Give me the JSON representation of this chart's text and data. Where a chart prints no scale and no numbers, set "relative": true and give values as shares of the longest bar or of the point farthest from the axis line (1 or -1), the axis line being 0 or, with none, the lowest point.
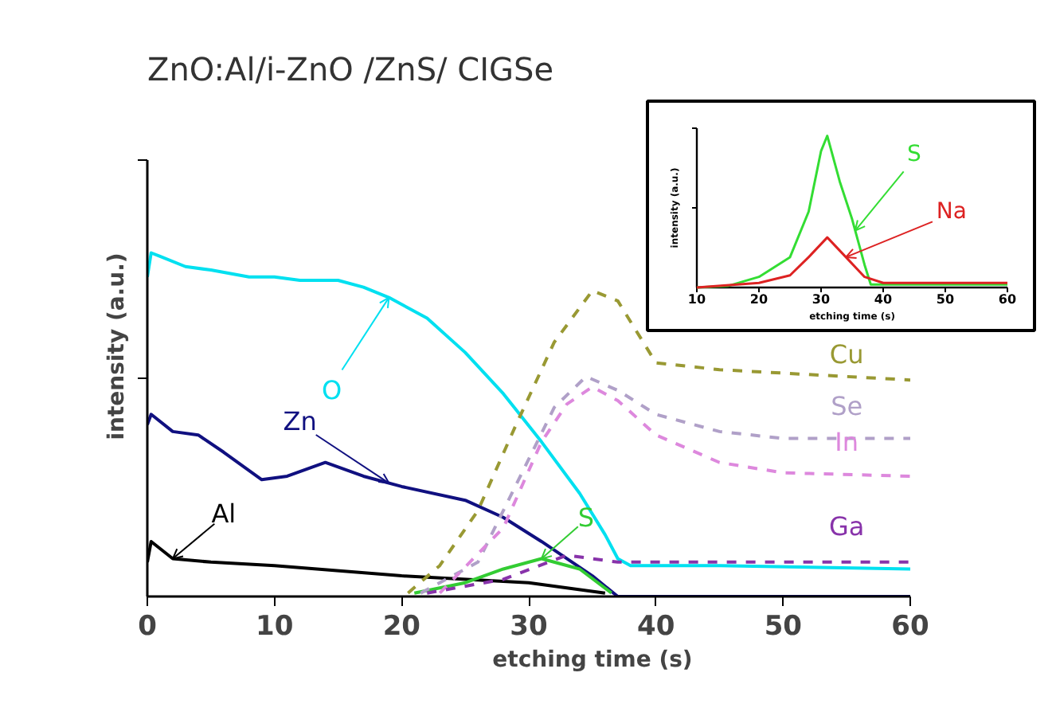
{
  "chart_data": [
    {
      "type": "line",
      "title": "ZnO:Al/i-ZnO /ZnS/ CIGSe",
      "xlabel": "etching time (s)",
      "ylabel": "intensity (a.u.)",
      "relative": true,
      "xlim": [
        0,
        60
      ],
      "xticks": [
        0,
        10,
        20,
        30,
        40,
        50,
        60
      ],
      "tick_labels": "x",
      "series": [
        {
          "name": "O",
          "color": "#00e0f0",
          "x": [
            0,
            0.3,
            1,
            3,
            5,
            8,
            10,
            12,
            15,
            17,
            19,
            22,
            25,
            28,
            31,
            34,
            36,
            37,
            38,
            45,
            60
          ],
          "values": [
            0.93,
            1.0,
            0.99,
            0.96,
            0.95,
            0.93,
            0.93,
            0.92,
            0.92,
            0.9,
            0.87,
            0.81,
            0.71,
            0.59,
            0.45,
            0.3,
            0.18,
            0.11,
            0.09,
            0.09,
            0.08
          ]
        },
        {
          "name": "Zn",
          "color": "#101080",
          "x": [
            0,
            0.3,
            2,
            4,
            6,
            9,
            11,
            14,
            17,
            20,
            25,
            28,
            31,
            35,
            37,
            60
          ],
          "values": [
            0.5,
            0.53,
            0.48,
            0.47,
            0.42,
            0.34,
            0.35,
            0.39,
            0.35,
            0.32,
            0.28,
            0.23,
            0.16,
            0.06,
            0.0,
            0.0
          ]
        },
        {
          "name": "Al",
          "color": "#000000",
          "x": [
            0,
            0.3,
            2,
            5,
            10,
            20,
            30,
            36
          ],
          "values": [
            0.1,
            0.16,
            0.11,
            0.1,
            0.09,
            0.06,
            0.04,
            0.01
          ]
        },
        {
          "name": "S",
          "color": "#33cc33",
          "x": [
            21,
            25,
            28,
            31,
            34,
            36.5
          ],
          "values": [
            0.01,
            0.04,
            0.08,
            0.11,
            0.08,
            0.01
          ]
        },
        {
          "name": "Cu",
          "color": "#999933",
          "line_style": "dashed",
          "x": [
            20.5,
            23,
            26,
            29,
            32,
            35,
            37,
            40,
            45,
            50,
            55,
            60
          ],
          "values": [
            0.01,
            0.09,
            0.25,
            0.5,
            0.74,
            0.89,
            0.86,
            0.68,
            0.66,
            0.65,
            0.64,
            0.63
          ]
        },
        {
          "name": "Se",
          "color": "#b0a0c8",
          "line_style": "dashed",
          "x": [
            21.5,
            26,
            30,
            32,
            34.5,
            37,
            40,
            45,
            50,
            60
          ],
          "values": [
            0.01,
            0.1,
            0.4,
            0.55,
            0.64,
            0.6,
            0.53,
            0.48,
            0.46,
            0.46
          ]
        },
        {
          "name": "In",
          "color": "#dd88dd",
          "line_style": "dashed",
          "x": [
            23,
            28,
            31,
            33,
            35,
            37,
            40,
            45,
            50,
            60
          ],
          "values": [
            0.01,
            0.2,
            0.45,
            0.56,
            0.61,
            0.57,
            0.47,
            0.39,
            0.36,
            0.35
          ]
        },
        {
          "name": "Ga",
          "color": "#8833aa",
          "line_style": "dashed",
          "x": [
            22,
            28,
            33,
            37,
            60
          ],
          "values": [
            0.01,
            0.05,
            0.12,
            0.1,
            0.1
          ]
        }
      ]
    },
    {
      "type": "line",
      "xlabel": "etching time (s)",
      "ylabel": "intensity (a.u.)",
      "relative": true,
      "xlim": [
        10,
        60
      ],
      "xticks": [
        10,
        20,
        30,
        40,
        50,
        60
      ],
      "tick_labels": "x",
      "series": [
        {
          "name": "S",
          "color": "#33dd33",
          "x": [
            10,
            15,
            20,
            25,
            28,
            30,
            31,
            33,
            35,
            37,
            38,
            60
          ],
          "values": [
            0.0,
            0.01,
            0.07,
            0.2,
            0.5,
            0.9,
            1.0,
            0.7,
            0.45,
            0.15,
            0.02,
            0.02
          ]
        },
        {
          "name": "Na",
          "color": "#dd2222",
          "x": [
            10,
            20,
            25,
            28,
            31,
            34,
            37,
            40,
            60
          ],
          "values": [
            0.0,
            0.03,
            0.08,
            0.2,
            0.33,
            0.2,
            0.07,
            0.03,
            0.03
          ]
        }
      ]
    }
  ]
}
